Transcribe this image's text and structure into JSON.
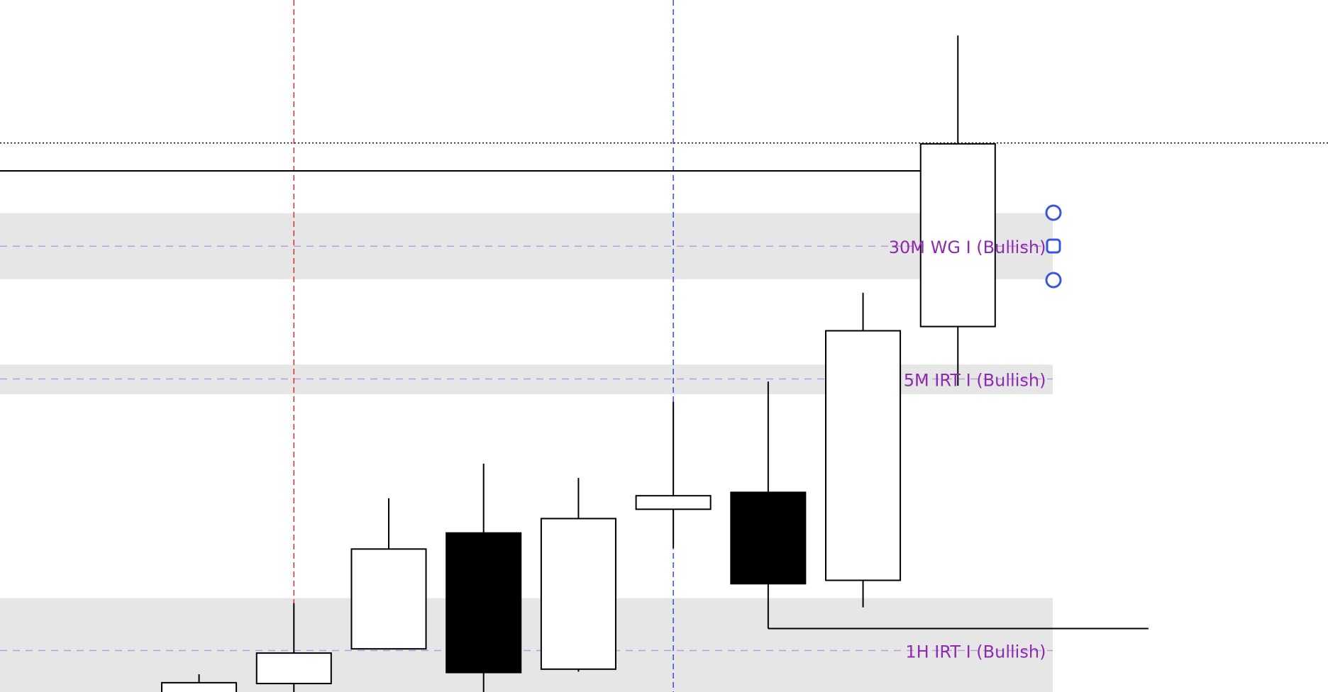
{
  "chart_data": {
    "type": "candlestick",
    "categories": [
      null,
      null,
      null,
      null,
      null,
      null,
      null,
      null,
      null
    ],
    "open": [
      -10,
      10,
      51,
      188,
      27,
      216,
      236,
      132,
      432
    ],
    "close": [
      11,
      46,
      169,
      23,
      205,
      232,
      128,
      427,
      648
    ],
    "high": [
      21,
      105,
      229,
      270,
      253,
      343,
      367,
      472,
      776
    ],
    "low": [
      -20,
      -5,
      51,
      -5,
      24,
      170,
      75,
      100,
      362
    ],
    "ylim": [
      0,
      818
    ],
    "zones": [
      {
        "label": "30M WG I (Bullish)",
        "top": 566,
        "bottom": 488,
        "level": 527
      },
      {
        "label": "5M IRT I (Bullish)",
        "top": 387,
        "bottom": 352,
        "level": 370
      },
      {
        "label": "1H IRT I (Bullish)",
        "top": 111,
        "bottom": -10,
        "level": 49
      }
    ],
    "levels": [
      {
        "value": 649,
        "style": "dotted",
        "color": "#000000"
      },
      {
        "value": 616,
        "style": "solid",
        "color": "#000000"
      },
      {
        "value": 75,
        "style": "solid",
        "color": "#000000"
      }
    ],
    "vlines": [
      {
        "index": 1,
        "color": "#e03030"
      },
      {
        "index": 5,
        "color": "#3050d0"
      }
    ],
    "bull_color": "#ffffff",
    "bear_color": "#000000"
  }
}
